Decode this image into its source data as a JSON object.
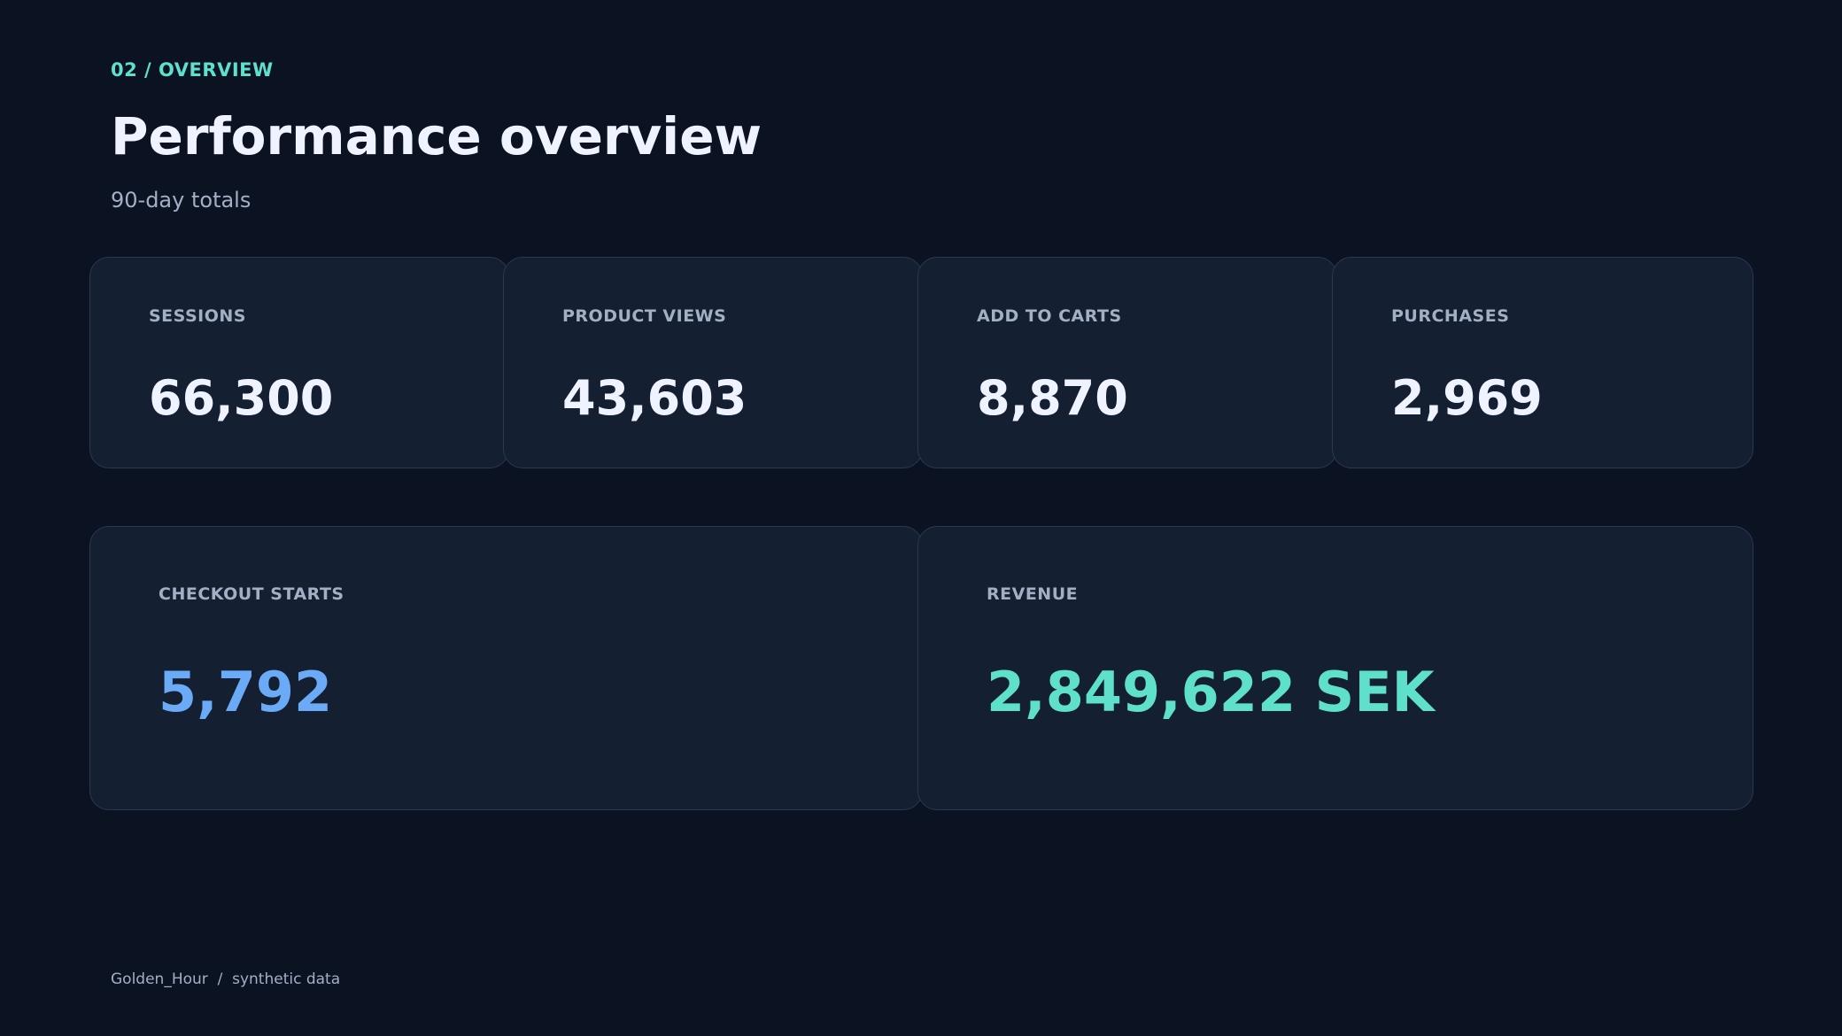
{
  "header": {
    "eyebrow": "02 / OVERVIEW",
    "title": "Performance overview",
    "subtitle": "90-day totals"
  },
  "kpis": [
    {
      "label": "SESSIONS",
      "value": "66,300"
    },
    {
      "label": "PRODUCT VIEWS",
      "value": "43,603"
    },
    {
      "label": "ADD TO CARTS",
      "value": "8,870"
    },
    {
      "label": "PURCHASES",
      "value": "2,969"
    }
  ],
  "highlights": [
    {
      "label": "CHECKOUT STARTS",
      "value": "5,792"
    },
    {
      "label": "REVENUE",
      "value": "2,849,622 SEK"
    }
  ],
  "footer": "Golden_Hour  /  synthetic data"
}
